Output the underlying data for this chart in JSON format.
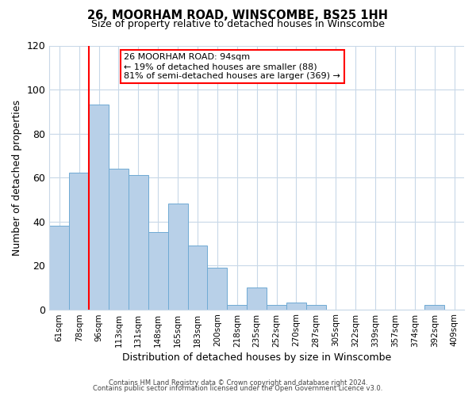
{
  "title": "26, MOORHAM ROAD, WINSCOMBE, BS25 1HH",
  "subtitle": "Size of property relative to detached houses in Winscombe",
  "xlabel": "Distribution of detached houses by size in Winscombe",
  "ylabel": "Number of detached properties",
  "bar_labels": [
    "61sqm",
    "78sqm",
    "96sqm",
    "113sqm",
    "131sqm",
    "148sqm",
    "165sqm",
    "183sqm",
    "200sqm",
    "218sqm",
    "235sqm",
    "252sqm",
    "270sqm",
    "287sqm",
    "305sqm",
    "322sqm",
    "339sqm",
    "357sqm",
    "374sqm",
    "392sqm",
    "409sqm"
  ],
  "bar_values": [
    38,
    62,
    93,
    64,
    61,
    35,
    48,
    29,
    19,
    2,
    10,
    2,
    3,
    2,
    0,
    0,
    0,
    0,
    0,
    2,
    0
  ],
  "bar_color": "#b8d0e8",
  "bar_edge_color": "#6faad4",
  "ylim": [
    0,
    120
  ],
  "yticks": [
    0,
    20,
    40,
    60,
    80,
    100,
    120
  ],
  "annotation_title": "26 MOORHAM ROAD: 94sqm",
  "annotation_line1": "← 19% of detached houses are smaller (88)",
  "annotation_line2": "81% of semi-detached houses are larger (369) →",
  "red_line_bin": 2,
  "footer_line1": "Contains HM Land Registry data © Crown copyright and database right 2024.",
  "footer_line2": "Contains public sector information licensed under the Open Government Licence v3.0.",
  "background_color": "#ffffff",
  "grid_color": "#c8d8e8"
}
